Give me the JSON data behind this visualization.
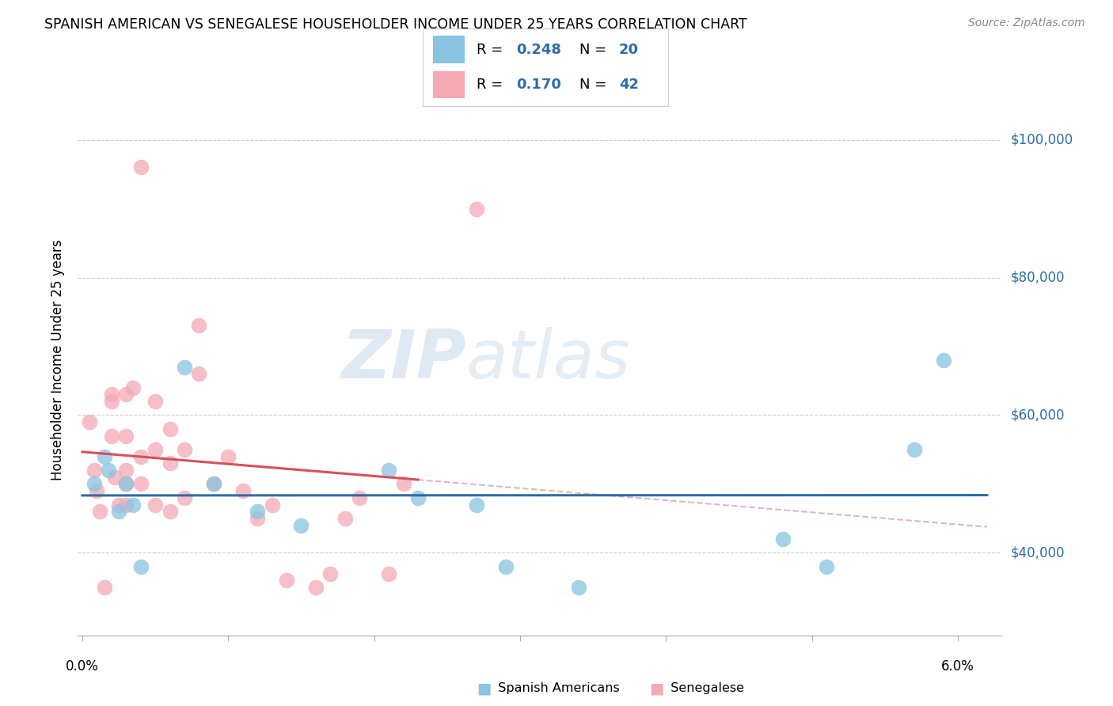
{
  "title": "SPANISH AMERICAN VS SENEGALESE HOUSEHOLDER INCOME UNDER 25 YEARS CORRELATION CHART",
  "source": "Source: ZipAtlas.com",
  "ylabel": "Householder Income Under 25 years",
  "legend_r1": "R = 0.248",
  "legend_n1": "N = 20",
  "legend_r2": "R = 0.170",
  "legend_n2": "N = 42",
  "ytick_labels": [
    "$40,000",
    "$60,000",
    "$80,000",
    "$100,000"
  ],
  "ytick_values": [
    40000,
    60000,
    80000,
    100000
  ],
  "ymin": 28000,
  "ymax": 108000,
  "xmin": -0.0003,
  "xmax": 0.063,
  "watermark_zip": "ZIP",
  "watermark_atlas": "atlas",
  "blue_marker_color": "#89c4e1",
  "pink_marker_color": "#f4a9b5",
  "blue_line_color": "#2e6da4",
  "pink_line_color": "#d94f5c",
  "pink_dash_color": "#c8a0a0",
  "text_color": "#2e6da4",
  "label_color": "#2e6da4",
  "blue_x": [
    0.0008,
    0.0015,
    0.0018,
    0.0025,
    0.003,
    0.0035,
    0.004,
    0.007,
    0.009,
    0.012,
    0.015,
    0.021,
    0.023,
    0.027,
    0.029,
    0.034,
    0.048,
    0.051,
    0.057,
    0.059
  ],
  "blue_y": [
    50000,
    54000,
    52000,
    46000,
    50000,
    47000,
    38000,
    67000,
    50000,
    46000,
    44000,
    52000,
    48000,
    47000,
    38000,
    35000,
    42000,
    38000,
    55000,
    68000
  ],
  "pink_x": [
    0.0005,
    0.0008,
    0.001,
    0.0012,
    0.0015,
    0.002,
    0.002,
    0.002,
    0.0022,
    0.0025,
    0.003,
    0.003,
    0.003,
    0.003,
    0.003,
    0.0035,
    0.004,
    0.004,
    0.005,
    0.005,
    0.005,
    0.006,
    0.006,
    0.006,
    0.007,
    0.007,
    0.008,
    0.008,
    0.004,
    0.009,
    0.01,
    0.011,
    0.012,
    0.013,
    0.014,
    0.016,
    0.017,
    0.018,
    0.019,
    0.021,
    0.022,
    0.027
  ],
  "pink_y": [
    59000,
    52000,
    49000,
    46000,
    35000,
    63000,
    62000,
    57000,
    51000,
    47000,
    63000,
    57000,
    52000,
    50000,
    47000,
    64000,
    54000,
    50000,
    62000,
    55000,
    47000,
    58000,
    53000,
    46000,
    55000,
    48000,
    73000,
    66000,
    96000,
    50000,
    54000,
    49000,
    45000,
    47000,
    36000,
    35000,
    37000,
    45000,
    48000,
    37000,
    50000,
    90000
  ],
  "bottom_legend_labels": [
    "Spanish Americans",
    "Senegalese"
  ]
}
